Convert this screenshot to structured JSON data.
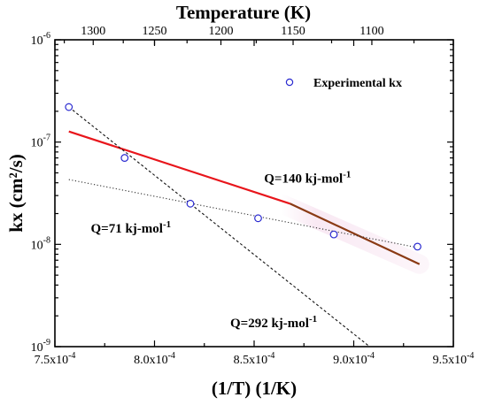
{
  "chart_data": {
    "type": "scatter",
    "title": "",
    "xlabel": "(1/T) (1/K)",
    "ylabel": "kx (cm²/s)",
    "top_xlabel": "Temperature (K)",
    "xlim": [
      0.00075,
      0.00095
    ],
    "ylim": [
      1e-09,
      1e-06
    ],
    "yscale": "log",
    "grid": false,
    "legend_position": "top-right",
    "x_ticks": [
      {
        "value": 0.00075,
        "mantissa": "7.5",
        "exp": "-4"
      },
      {
        "value": 0.0008,
        "mantissa": "8.0",
        "exp": "-4"
      },
      {
        "value": 0.00085,
        "mantissa": "8.5",
        "exp": "-4"
      },
      {
        "value": 0.0009,
        "mantissa": "9.0",
        "exp": "-4"
      },
      {
        "value": 0.00095,
        "mantissa": "9.5",
        "exp": "-4"
      }
    ],
    "y_ticks": [
      {
        "value": 1e-09,
        "exp": "-9"
      },
      {
        "value": 1e-08,
        "exp": "-8"
      },
      {
        "value": 1e-07,
        "exp": "-7"
      },
      {
        "value": 1e-06,
        "exp": "-6"
      }
    ],
    "top_ticks": [
      1300,
      1250,
      1200,
      1150,
      1100
    ],
    "series": [
      {
        "name": "Experimental kx",
        "type": "scatter",
        "marker": "open-circle",
        "color": "#2a2ad0",
        "x": [
          0.000757,
          0.000785,
          0.000818,
          0.000852,
          0.00089,
          0.000932
        ],
        "y": [
          2.2e-07,
          7e-08,
          2.5e-08,
          1.8e-08,
          1.25e-08,
          9.5e-09
        ]
      },
      {
        "type": "line",
        "style": "solid",
        "color": "#e8151b",
        "x": [
          0.000757,
          0.000868
        ],
        "y": [
          1.27e-07,
          2.5e-08
        ]
      },
      {
        "type": "line",
        "style": "solid",
        "color": "#8a3a14",
        "x": [
          0.000868,
          0.000933
        ],
        "y": [
          2.5e-08,
          6.4e-09
        ]
      },
      {
        "type": "line",
        "style": "dotted",
        "color": "#333333",
        "x": [
          0.000757,
          0.000932
        ],
        "y": [
          4.3e-08,
          9.3e-09
        ]
      },
      {
        "type": "line",
        "style": "dashed",
        "color": "#111111",
        "x": [
          0.000757,
          0.000908
        ],
        "y": [
          2.2e-07,
          1e-09
        ]
      }
    ],
    "annotations": [
      {
        "base": "Q=140 kj-mol",
        "sup": "-1",
        "x": 0.000855,
        "y": 4e-08
      },
      {
        "base": "Q=71 kj-mol",
        "sup": "-1",
        "x": 0.000768,
        "y": 1.3e-08
      },
      {
        "base": "Q=292 kj-mol",
        "sup": "-1",
        "x": 0.000838,
        "y": 1.55e-09
      }
    ]
  }
}
